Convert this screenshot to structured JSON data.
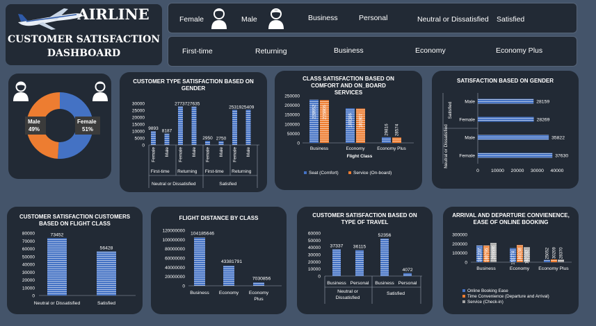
{
  "header": {
    "title_line1": "AIRLINE",
    "title_line2": "CUSTOMER SATISFACTION",
    "title_line3": "DASHBOARD"
  },
  "slicers": {
    "row1": [
      "Female",
      "Male",
      "Business",
      "Personal",
      "Neutral or Dissatisfied",
      "Satisfied"
    ],
    "row2": [
      "First-time",
      "Returning",
      "Business",
      "Economy",
      "Economy Plus"
    ]
  },
  "colors": {
    "blue": "#4472c4",
    "orange": "#ed7d31",
    "gray": "#a5a5a5",
    "panel": "#222a35",
    "bg": "#44546a"
  },
  "chart_data": [
    {
      "id": "gender-donut",
      "type": "pie",
      "title": "",
      "slices": [
        {
          "label": "Female",
          "pct_label": "51%",
          "value": 51,
          "color": "#4472c4"
        },
        {
          "label": "Male",
          "pct_label": "49%",
          "value": 49,
          "color": "#ed7d31"
        }
      ]
    },
    {
      "id": "customer-type-gender",
      "type": "bar",
      "title": "CUSTOMER TYPE SATISFACTION BASED ON GENDER",
      "ylim": [
        0,
        30000
      ],
      "yticks": [
        "0",
        "5000",
        "10000",
        "15000",
        "20000",
        "25000",
        "30000"
      ],
      "bars": [
        {
          "gender": "Female",
          "type": "First-time",
          "group": "Neutral or Dissatisfied",
          "value": 9893
        },
        {
          "gender": "Male",
          "type": "First-time",
          "group": "Neutral or Dissatisfied",
          "value": 8187
        },
        {
          "gender": "Female",
          "type": "Returning",
          "group": "Neutral or Dissatisfied",
          "value": 27737
        },
        {
          "gender": "Male",
          "type": "Returning",
          "group": "Neutral or Dissatisfied",
          "value": 27635
        },
        {
          "gender": "Female",
          "type": "First-time",
          "group": "Satisfied",
          "value": 2950
        },
        {
          "gender": "Male",
          "type": "First-time",
          "group": "Satisfied",
          "value": 2750
        },
        {
          "gender": "Female",
          "type": "Returning",
          "group": "Satisfied",
          "value": 25319
        },
        {
          "gender": "Male",
          "type": "Returning",
          "group": "Satisfied",
          "value": 25409
        }
      ],
      "value_labels": [
        "9893",
        "8187",
        "2773727635",
        "2950",
        "2750",
        "2531925409"
      ],
      "type_labels": [
        "First-time",
        "Returning",
        "First-time",
        "Returning"
      ],
      "group_labels": [
        "Neutral or Dissatisfied",
        "Satisfied"
      ]
    },
    {
      "id": "class-comfort",
      "type": "bar",
      "title": "CLASS SATISFACTION BASED ON COMFORT AND ON_BOARD SERVICES",
      "xlabel": "Flight Class",
      "ylim": [
        0,
        250000
      ],
      "yticks": [
        "0",
        "50000",
        "100000",
        "150000",
        "200000",
        "250000"
      ],
      "categories": [
        "Business",
        "Economy",
        "Economy Plus"
      ],
      "series": [
        {
          "name": "Seat (Comfort)",
          "values": [
            228952,
            183186,
            29816
          ],
          "labels": [
            "228952",
            "183186",
            "29816"
          ],
          "color": "#4472c4"
        },
        {
          "name": "Service (On-board)",
          "values": [
            226906,
            181907,
            28574
          ],
          "labels": [
            "226906",
            "181907",
            "28574"
          ],
          "color": "#ed7d31"
        }
      ]
    },
    {
      "id": "satisfaction-gender",
      "type": "bar",
      "title": "SATISFACTION BASED ON GENDER",
      "xlim": [
        0,
        40000
      ],
      "xticks": [
        "0",
        "10000",
        "20000",
        "30000",
        "40000"
      ],
      "rows": [
        {
          "group": "Satisfied",
          "gender": "Male",
          "value": 28159,
          "label": "28159"
        },
        {
          "group": "Satisfied",
          "gender": "Female",
          "value": 28269,
          "label": "28269"
        },
        {
          "group": "Neutral or Dissatisfied",
          "gender": "Male",
          "value": 35822,
          "label": "35822"
        },
        {
          "group": "Neutral or Dissatisfied",
          "gender": "Female",
          "value": 37630,
          "label": "37630"
        }
      ],
      "group_labels": [
        "Satisfied",
        "Neutral or Dissatisfied"
      ]
    },
    {
      "id": "flight-class-customers",
      "type": "bar",
      "title": "CUSTOMER SATISFACTION CUSTOMERS BASED ON FLIGHT CLASS",
      "ylim": [
        0,
        80000
      ],
      "yticks": [
        "0",
        "10000",
        "20000",
        "30000",
        "40000",
        "50000",
        "60000",
        "70000",
        "80000"
      ],
      "categories": [
        "Neutral or Dissatisfied",
        "Satisfied"
      ],
      "values": [
        73452,
        56428
      ],
      "labels": [
        "73452",
        "56428"
      ]
    },
    {
      "id": "flight-distance",
      "type": "bar",
      "title": "FLIGHT DISTANCE BY CLASS",
      "ylim": [
        0,
        120000000
      ],
      "yticks": [
        "0",
        "20000000",
        "40000000",
        "60000000",
        "80000000",
        "100000000",
        "120000000"
      ],
      "categories": [
        "Business",
        "Economy",
        "Economy Plus"
      ],
      "values": [
        104185646,
        43381791,
        7030856
      ],
      "labels": [
        "104185646",
        "43381791",
        "7030856"
      ]
    },
    {
      "id": "type-of-travel",
      "type": "bar",
      "title": "CUSTOMER SATISFACTION BASED ON TYPE OF TRAVEL",
      "ylim": [
        0,
        60000
      ],
      "yticks": [
        "0",
        "10000",
        "20000",
        "30000",
        "40000",
        "50000",
        "60000"
      ],
      "bars": [
        {
          "travel": "Business",
          "group": "Neutral or Dissatisfied",
          "value": 37337,
          "label": "37337"
        },
        {
          "travel": "Personal",
          "group": "Neutral or Dissatisfied",
          "value": 36115,
          "label": "36115"
        },
        {
          "travel": "Business",
          "group": "Satisfied",
          "value": 52356,
          "label": "52356"
        },
        {
          "travel": "Personal",
          "group": "Satisfied",
          "value": 4072,
          "label": "4072"
        }
      ],
      "group_labels": [
        "Neutral or Dissatisfied",
        "Satisfied"
      ]
    },
    {
      "id": "arrival-departure",
      "type": "bar",
      "title": "ARRIVAL AND DEPARTURE CONVIENENCE, EASE OF ONLINE BOOKING",
      "ylim": [
        0,
        300000
      ],
      "yticks": [
        "0",
        "100000",
        "200000",
        "300000"
      ],
      "categories": [
        "Business",
        "Economy",
        "Economy Plus"
      ],
      "series": [
        {
          "name": "Online Booking Ease",
          "values": [
            181237,
            151774,
            25052
          ],
          "labels": [
            "181237",
            "151774",
            "25052"
          ],
          "color": "#4472c4"
        },
        {
          "name": "Time Convenience (Departure and Arrival)",
          "values": [
            180796,
            186158,
            30209
          ],
          "labels": [
            "180796",
            "186158",
            "30209"
          ],
          "color": "#ed7d31"
        },
        {
          "name": "Service (Check-in)",
          "values": [
            208686,
            162182,
            28370
          ],
          "labels": [
            "208686",
            "162182",
            "28370"
          ],
          "color": "#a5a5a5"
        }
      ]
    }
  ]
}
